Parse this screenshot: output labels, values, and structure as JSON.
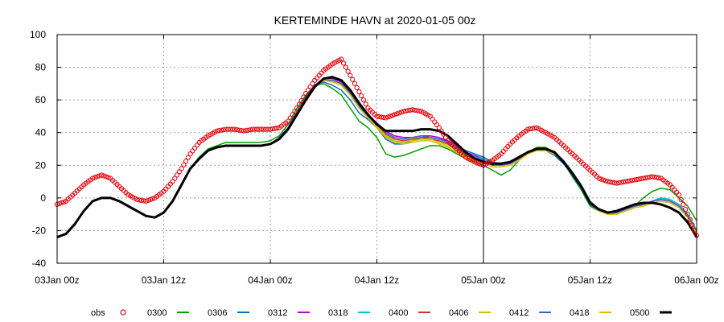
{
  "chart_data": {
    "type": "line",
    "title": "KERTEMINDE HAVN at 2020-01-05 00z",
    "xlabel": "",
    "ylabel": "",
    "x_unit": "hours since 03Jan 00z",
    "xlim": [
      0,
      72
    ],
    "ylim": [
      -40,
      100
    ],
    "grid": true,
    "x_ticks": [
      {
        "value": 0,
        "label": "03Jan 00z"
      },
      {
        "value": 12,
        "label": "03Jan 12z"
      },
      {
        "value": 24,
        "label": "04Jan 00z"
      },
      {
        "value": 36,
        "label": "04Jan 12z"
      },
      {
        "value": 48,
        "label": "05Jan 00z"
      },
      {
        "value": 60,
        "label": "05Jan 12z"
      },
      {
        "value": 72,
        "label": "06Jan 00z"
      }
    ],
    "y_ticks": [
      -40,
      -20,
      0,
      20,
      40,
      60,
      80,
      100
    ],
    "analysis_marker_x": 48,
    "legend_position": "bottom",
    "observations": {
      "name": "obs",
      "color": "#e8000b",
      "x": [
        0,
        1,
        2,
        3,
        4,
        5,
        6,
        7,
        8,
        9,
        10,
        11,
        12,
        13,
        14,
        15,
        16,
        17,
        18,
        19,
        20,
        21,
        22,
        23,
        24,
        25,
        26,
        27,
        28,
        29,
        30,
        31,
        32,
        33,
        34,
        35,
        36,
        37,
        38,
        39,
        40,
        41,
        42,
        43,
        44,
        45,
        46,
        47,
        48
      ],
      "y": [
        -4,
        -2,
        3,
        8,
        12,
        14,
        12,
        7,
        2,
        -1,
        -2,
        0,
        4,
        10,
        18,
        27,
        34,
        38,
        41,
        42,
        42,
        41,
        42,
        42,
        42,
        43,
        47,
        55,
        64,
        72,
        78,
        82,
        85,
        75,
        65,
        55,
        50,
        49,
        51,
        53,
        54,
        53,
        50,
        43,
        35,
        30,
        25,
        22,
        20
      ]
    },
    "obs_continued": {
      "x": [
        48,
        49,
        50,
        51,
        52,
        53,
        54,
        55,
        56,
        57,
        58,
        59,
        60,
        61,
        62,
        63,
        64,
        65,
        66,
        67,
        68,
        69,
        70,
        71,
        72
      ],
      "y": [
        20,
        23,
        27,
        33,
        38,
        42,
        43,
        40,
        37,
        32,
        27,
        22,
        17,
        12,
        10,
        9,
        10,
        11,
        12,
        13,
        12,
        8,
        2,
        -10,
        -23
      ]
    },
    "series": [
      {
        "name": "0300",
        "color": "#00a000",
        "values": [
          -24,
          -22,
          -16,
          -8,
          -2,
          0,
          0,
          -2,
          -5,
          -8,
          -11,
          -12,
          -9,
          -2,
          8,
          18,
          25,
          30,
          32,
          34,
          34,
          34,
          34,
          34,
          35,
          38,
          45,
          55,
          63,
          69,
          70,
          67,
          63,
          55,
          47,
          43,
          37,
          27,
          25,
          26,
          28,
          30,
          32,
          32,
          30,
          27,
          24,
          22,
          20,
          17,
          14,
          17,
          23,
          28,
          31,
          31,
          28,
          22,
          13,
          5,
          -5,
          -8,
          -9,
          -8,
          -6,
          -5,
          0,
          4,
          6,
          5,
          0,
          -5,
          -14
        ]
      },
      {
        "name": "0306",
        "color": "#0072bd",
        "values": [
          -24,
          -22,
          -16,
          -8,
          -2,
          0,
          0,
          -2,
          -5,
          -8,
          -11,
          -12,
          -9,
          -2,
          8,
          18,
          24,
          29,
          31,
          32,
          32,
          32,
          32,
          32,
          33,
          37,
          43,
          53,
          62,
          69,
          71,
          69,
          66,
          60,
          52,
          48,
          43,
          36,
          33,
          33,
          35,
          37,
          37,
          36,
          35,
          32,
          29,
          27,
          25,
          22,
          21,
          22,
          25,
          28,
          30,
          29,
          26,
          21,
          14,
          6,
          -4,
          -8,
          -10,
          -9,
          -7,
          -5,
          -4,
          -2,
          0,
          -1,
          -4,
          -10,
          -20
        ]
      },
      {
        "name": "0312",
        "color": "#b000e0",
        "values": [
          -24,
          -22,
          -16,
          -8,
          -2,
          0,
          0,
          -2,
          -5,
          -8,
          -11,
          -12,
          -9,
          -2,
          8,
          18,
          24,
          29,
          31,
          32,
          32,
          32,
          32,
          32,
          33,
          36,
          43,
          52,
          61,
          69,
          73,
          73,
          71,
          65,
          57,
          51,
          46,
          41,
          38,
          37,
          37,
          38,
          38,
          37,
          35,
          32,
          28,
          26,
          24,
          21,
          21,
          22,
          25,
          28,
          30,
          30,
          28,
          23,
          16,
          8,
          -2,
          -7,
          -9,
          -9,
          -7,
          -5,
          -4,
          -2,
          0,
          -1,
          -4,
          -10,
          -20
        ]
      },
      {
        "name": "0318",
        "color": "#00c8d0",
        "values": [
          -24,
          -22,
          -16,
          -8,
          -2,
          0,
          0,
          -2,
          -5,
          -8,
          -11,
          -12,
          -9,
          -2,
          8,
          18,
          24,
          29,
          31,
          32,
          32,
          32,
          32,
          32,
          33,
          36,
          42,
          52,
          61,
          69,
          72,
          72,
          70,
          64,
          56,
          50,
          44,
          38,
          34,
          34,
          35,
          36,
          36,
          35,
          33,
          30,
          27,
          25,
          24,
          21,
          21,
          22,
          25,
          28,
          30,
          30,
          28,
          23,
          16,
          8,
          -2,
          -7,
          -9,
          -9,
          -7,
          -5,
          -4,
          -2,
          0,
          -1,
          -4,
          -10,
          -20
        ]
      },
      {
        "name": "0400",
        "color": "#c0392b",
        "values": [
          -24,
          -22,
          -16,
          -8,
          -2,
          0,
          0,
          -2,
          -5,
          -8,
          -11,
          -12,
          -9,
          -2,
          8,
          18,
          24,
          29,
          31,
          32,
          32,
          32,
          32,
          32,
          33,
          36,
          42,
          51,
          60,
          68,
          72,
          72,
          70,
          65,
          57,
          51,
          45,
          39,
          36,
          35,
          36,
          37,
          36,
          35,
          33,
          30,
          26,
          24,
          22,
          20,
          20,
          21,
          24,
          28,
          30,
          30,
          28,
          23,
          16,
          8,
          -2,
          -7,
          -9,
          -9,
          -7,
          -5,
          -4,
          -2,
          -1,
          -2,
          -5,
          -11,
          -21
        ]
      },
      {
        "name": "0406",
        "color": "#c8c800",
        "values": [
          -24,
          -22,
          -16,
          -8,
          -2,
          0,
          0,
          -2,
          -5,
          -8,
          -11,
          -12,
          -9,
          -2,
          8,
          18,
          24,
          29,
          31,
          32,
          32,
          32,
          32,
          32,
          33,
          36,
          42,
          51,
          60,
          68,
          72,
          71,
          69,
          63,
          55,
          49,
          43,
          37,
          34,
          33,
          34,
          35,
          35,
          33,
          31,
          28,
          24,
          23,
          22,
          19,
          19,
          20,
          23,
          27,
          29,
          29,
          27,
          22,
          15,
          7,
          -3,
          -8,
          -10,
          -10,
          -8,
          -6,
          -5,
          -3,
          -2,
          -3,
          -6,
          -12,
          -22
        ]
      },
      {
        "name": "0412",
        "color": "#4060d0",
        "values": [
          -24,
          -22,
          -16,
          -8,
          -2,
          0,
          0,
          -2,
          -5,
          -8,
          -11,
          -12,
          -9,
          -2,
          8,
          18,
          24,
          29,
          31,
          32,
          32,
          32,
          32,
          32,
          33,
          36,
          42,
          51,
          61,
          69,
          72,
          72,
          70,
          64,
          56,
          50,
          45,
          40,
          37,
          36,
          37,
          38,
          37,
          36,
          34,
          31,
          27,
          25,
          23,
          20,
          20,
          21,
          24,
          28,
          30,
          30,
          28,
          23,
          16,
          8,
          -2,
          -7,
          -9,
          -9,
          -7,
          -5,
          -4,
          -2,
          -1,
          -2,
          -5,
          -11,
          -21
        ]
      },
      {
        "name": "0418",
        "color": "#e8b800",
        "values": [
          -24,
          -22,
          -16,
          -8,
          -2,
          0,
          0,
          -2,
          -5,
          -8,
          -11,
          -12,
          -9,
          -2,
          8,
          18,
          24,
          29,
          31,
          32,
          32,
          32,
          32,
          32,
          33,
          36,
          42,
          51,
          60,
          68,
          72,
          71,
          69,
          63,
          55,
          49,
          44,
          38,
          35,
          34,
          35,
          36,
          36,
          34,
          32,
          29,
          25,
          23,
          22,
          19,
          19,
          20,
          23,
          27,
          29,
          29,
          27,
          22,
          15,
          7,
          -3,
          -8,
          -10,
          -10,
          -8,
          -6,
          -5,
          -3,
          -2,
          -3,
          -6,
          -12,
          -22
        ]
      },
      {
        "name": "0500",
        "color": "#000000",
        "values": [
          -24,
          -22,
          -16,
          -8,
          -2,
          0,
          0,
          -2,
          -5,
          -8,
          -11,
          -12,
          -9,
          -2,
          8,
          18,
          24,
          29,
          31,
          32,
          32,
          32,
          32,
          32,
          33,
          36,
          42,
          51,
          60,
          68,
          73,
          74,
          72,
          66,
          58,
          51,
          45,
          41,
          41,
          41,
          41,
          42,
          42,
          41,
          38,
          33,
          28,
          24,
          22,
          21,
          21,
          22,
          25,
          28,
          30,
          30,
          28,
          22,
          15,
          7,
          -3,
          -7,
          -9,
          -8,
          -6,
          -4,
          -3,
          -3,
          -4,
          -6,
          -9,
          -15,
          -24
        ]
      }
    ]
  }
}
